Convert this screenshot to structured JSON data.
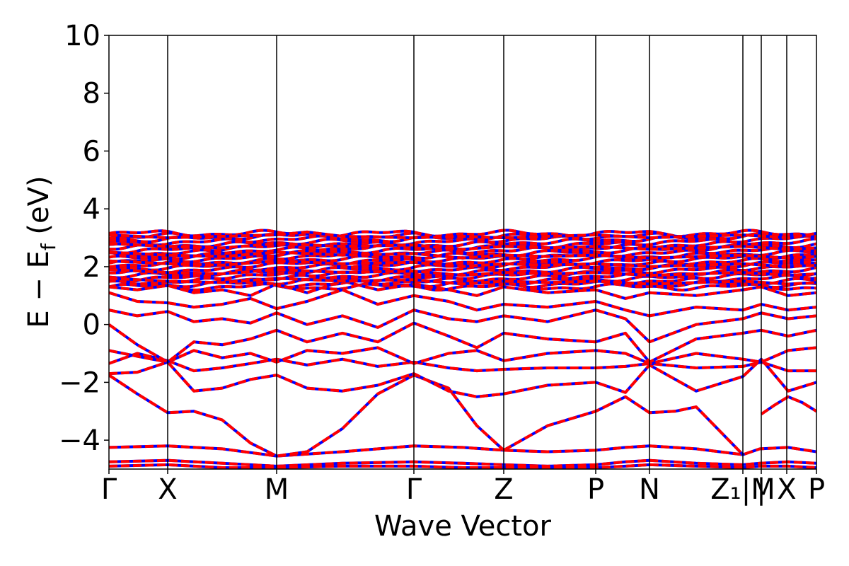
{
  "chart_data": {
    "type": "line",
    "title": "",
    "xlabel": "Wave Vector",
    "ylabel_parts": {
      "main": "E − E",
      "sub": "f",
      "unit": " (eV)"
    },
    "ylim": [
      -5,
      10
    ],
    "yticks": [
      {
        "value": -4,
        "label": "−4"
      },
      {
        "value": -2,
        "label": "−2"
      },
      {
        "value": 0,
        "label": "0"
      },
      {
        "value": 2,
        "label": "2"
      },
      {
        "value": 4,
        "label": "4"
      },
      {
        "value": 6,
        "label": "6"
      },
      {
        "value": 8,
        "label": "8"
      },
      {
        "value": 10,
        "label": "10"
      }
    ],
    "high_symmetry_points": [
      {
        "label": "Γ",
        "pos": 0.0
      },
      {
        "label": "X",
        "pos": 0.083
      },
      {
        "label": "M",
        "pos": 0.237
      },
      {
        "label": "Γ",
        "pos": 0.431
      },
      {
        "label": "Z",
        "pos": 0.558
      },
      {
        "label": "P",
        "pos": 0.688
      },
      {
        "label": "N",
        "pos": 0.764
      },
      {
        "label": "Z₁|M",
        "pos": 0.896
      },
      {
        "label": "|",
        "pos": 0.922
      },
      {
        "label": "X",
        "pos": 0.958
      },
      {
        "label": "P",
        "pos": 1.0
      }
    ],
    "series": [
      {
        "color": "#0000ff",
        "style": "solid"
      },
      {
        "color": "#ff0000",
        "style": "dashed"
      }
    ],
    "bands": [
      {
        "k": [
          0,
          0.083,
          0.16,
          0.237,
          0.33,
          0.431,
          0.5,
          0.558,
          0.62,
          0.688,
          0.73,
          0.764,
          0.83,
          0.896,
          0.92,
          0.96,
          1.0
        ],
        "e": [
          -4.25,
          -4.2,
          -4.3,
          -4.55,
          -4.4,
          -4.2,
          -4.25,
          -4.35,
          -4.4,
          -4.35,
          -4.25,
          -4.2,
          -4.3,
          -4.5,
          -4.3,
          -4.25,
          -4.4
        ]
      },
      {
        "k": [
          0,
          0.083,
          0.16,
          0.237,
          0.33,
          0.431,
          0.5,
          0.558,
          0.62,
          0.688,
          0.73,
          0.764,
          0.83,
          0.896,
          0.92,
          0.96,
          1.0
        ],
        "e": [
          -4.75,
          -4.7,
          -4.8,
          -4.9,
          -4.8,
          -4.75,
          -4.8,
          -4.85,
          -4.9,
          -4.85,
          -4.75,
          -4.7,
          -4.8,
          -4.85,
          -4.8,
          -4.75,
          -4.8
        ]
      },
      {
        "k": [
          0,
          0.083,
          0.16,
          0.237,
          0.33,
          0.431,
          0.5,
          0.558,
          0.62,
          0.688,
          0.73,
          0.764,
          0.83,
          0.896,
          0.92,
          0.96,
          1.0
        ],
        "e": [
          -4.9,
          -4.85,
          -4.95,
          -4.95,
          -4.9,
          -4.9,
          -4.95,
          -4.95,
          -4.95,
          -4.95,
          -4.9,
          -4.85,
          -4.9,
          -4.95,
          -4.9,
          -4.9,
          -4.95
        ]
      },
      {
        "k": [
          0,
          0.04,
          0.083,
          0.12,
          0.16,
          0.2,
          0.237,
          0.28,
          0.33,
          0.38,
          0.431,
          0.48,
          0.52,
          0.558
        ],
        "e": [
          -1.75,
          -2.4,
          -3.05,
          -3.0,
          -3.3,
          -4.1,
          -4.55,
          -4.4,
          -3.6,
          -2.4,
          -1.75,
          -2.2,
          -3.5,
          -4.35
        ]
      },
      {
        "k": [
          0.558,
          0.62,
          0.688,
          0.73,
          0.764,
          0.8,
          0.83,
          0.896
        ],
        "e": [
          -4.35,
          -3.5,
          -3.0,
          -2.5,
          -3.05,
          -3.0,
          -2.85,
          -4.5
        ]
      },
      {
        "k": [
          0.922,
          0.94,
          0.96,
          0.98,
          1.0
        ],
        "e": [
          -3.1,
          -2.8,
          -2.5,
          -2.7,
          -3.0
        ]
      },
      {
        "k": [
          0,
          0.04,
          0.083,
          0.12,
          0.16,
          0.2,
          0.237,
          0.28,
          0.33,
          0.38,
          0.431,
          0.48,
          0.52,
          0.558,
          0.62,
          0.688,
          0.73,
          0.764,
          0.83,
          0.896,
          0.922,
          0.96,
          1.0
        ],
        "e": [
          -1.7,
          -1.65,
          -1.3,
          -2.3,
          -2.2,
          -1.9,
          -1.75,
          -2.2,
          -2.3,
          -2.1,
          -1.7,
          -2.3,
          -2.5,
          -2.4,
          -2.1,
          -2.0,
          -2.35,
          -1.4,
          -2.3,
          -1.8,
          -1.2,
          -2.3,
          -2.0
        ]
      },
      {
        "k": [
          0,
          0.04,
          0.083,
          0.12,
          0.16,
          0.2,
          0.237,
          0.28,
          0.33,
          0.38,
          0.431,
          0.48,
          0.52,
          0.558,
          0.62,
          0.688,
          0.73,
          0.764,
          0.83,
          0.896,
          0.922,
          0.96,
          1.0
        ],
        "e": [
          -1.35,
          -1.0,
          -1.25,
          -1.6,
          -1.5,
          -1.35,
          -1.2,
          -1.4,
          -1.2,
          -1.45,
          -1.3,
          -1.5,
          -1.6,
          -1.55,
          -1.5,
          -1.5,
          -1.45,
          -1.35,
          -1.5,
          -1.45,
          -1.3,
          -1.6,
          -1.6
        ]
      },
      {
        "k": [
          0,
          0.04,
          0.083,
          0.12,
          0.16,
          0.2,
          0.237,
          0.28,
          0.33,
          0.38,
          0.431,
          0.48,
          0.52,
          0.558,
          0.62,
          0.688,
          0.73,
          0.764,
          0.83,
          0.896,
          0.922,
          0.96,
          1.0
        ],
        "e": [
          -0.9,
          -1.1,
          -1.3,
          -0.9,
          -1.15,
          -1.0,
          -1.3,
          -0.9,
          -1.0,
          -0.8,
          -1.35,
          -1.0,
          -0.9,
          -1.25,
          -1.0,
          -0.9,
          -1.0,
          -1.35,
          -1.0,
          -1.2,
          -1.3,
          -0.9,
          -0.8
        ]
      },
      {
        "k": [
          0,
          0.04,
          0.083,
          0.12,
          0.16,
          0.2,
          0.237,
          0.28,
          0.33,
          0.38,
          0.431,
          0.48,
          0.52,
          0.558,
          0.62,
          0.688,
          0.73,
          0.764,
          0.83,
          0.896,
          0.922,
          0.96,
          1.0
        ],
        "e": [
          0.0,
          -0.7,
          -1.3,
          -0.6,
          -0.7,
          -0.5,
          -0.2,
          -0.6,
          -0.3,
          -0.6,
          0.05,
          -0.4,
          -0.8,
          -0.3,
          -0.5,
          -0.6,
          -0.3,
          -1.3,
          -0.5,
          -0.3,
          -0.2,
          -0.4,
          -0.2
        ]
      },
      {
        "k": [
          0,
          0.04,
          0.083,
          0.12,
          0.16,
          0.2,
          0.237,
          0.28,
          0.33,
          0.38,
          0.431,
          0.48,
          0.52,
          0.558,
          0.62,
          0.688,
          0.73,
          0.764,
          0.83,
          0.896,
          0.922,
          0.96,
          1.0
        ],
        "e": [
          0.5,
          0.3,
          0.45,
          0.1,
          0.2,
          0.05,
          0.4,
          0.0,
          0.3,
          -0.1,
          0.5,
          0.2,
          0.1,
          0.3,
          0.1,
          0.5,
          0.2,
          -0.6,
          0.0,
          0.2,
          0.4,
          0.2,
          0.3
        ]
      },
      {
        "k": [
          0,
          0.04,
          0.083,
          0.12,
          0.16,
          0.2,
          0.237,
          0.28,
          0.33,
          0.38,
          0.431,
          0.48,
          0.52,
          0.558,
          0.62,
          0.688,
          0.73,
          0.764,
          0.83,
          0.896,
          0.922,
          0.96,
          1.0
        ],
        "e": [
          1.1,
          0.8,
          0.75,
          0.6,
          0.7,
          0.9,
          0.55,
          0.8,
          1.2,
          0.7,
          1.0,
          0.8,
          0.5,
          0.7,
          0.6,
          0.8,
          0.5,
          0.3,
          0.6,
          0.5,
          0.7,
          0.5,
          0.6
        ]
      },
      {
        "k": [
          0,
          0.04,
          0.083,
          0.12,
          0.16,
          0.2,
          0.237,
          0.28,
          0.33,
          0.38,
          0.431,
          0.48,
          0.52,
          0.558,
          0.62,
          0.688,
          0.73,
          0.764,
          0.83,
          0.896,
          0.922,
          0.96,
          1.0
        ],
        "e": [
          1.3,
          1.2,
          1.35,
          1.1,
          1.2,
          1.0,
          1.4,
          1.1,
          1.5,
          1.2,
          1.4,
          1.2,
          1.0,
          1.3,
          1.1,
          1.2,
          0.9,
          1.1,
          1.0,
          1.2,
          1.3,
          1.0,
          1.1
        ]
      },
      {
        "k": [
          0,
          0.083,
          0.16,
          0.237,
          0.33,
          0.431,
          0.5,
          0.558,
          0.62,
          0.688,
          0.764,
          0.83,
          0.896,
          0.96,
          1.0
        ],
        "e": [
          1.6,
          1.5,
          1.45,
          1.6,
          1.5,
          1.55,
          1.4,
          1.5,
          1.45,
          1.5,
          1.4,
          1.45,
          1.5,
          1.4,
          1.45
        ]
      },
      {
        "k": [
          0,
          0.083,
          0.16,
          0.237,
          0.33,
          0.431,
          0.5,
          0.558,
          0.62,
          0.688,
          0.764,
          0.83,
          0.896,
          0.96,
          1.0
        ],
        "e": [
          1.9,
          1.8,
          1.75,
          1.9,
          1.8,
          1.85,
          1.7,
          1.8,
          1.75,
          1.8,
          1.7,
          1.75,
          1.8,
          1.7,
          1.75
        ]
      },
      {
        "k": [
          0,
          0.083,
          0.16,
          0.237,
          0.33,
          0.431,
          0.5,
          0.558,
          0.62,
          0.688,
          0.764,
          0.83,
          0.896,
          0.96,
          1.0
        ],
        "e": [
          2.2,
          2.1,
          2.05,
          2.2,
          2.1,
          2.15,
          2.0,
          2.1,
          2.05,
          2.1,
          2.0,
          2.05,
          2.1,
          2.0,
          2.05
        ]
      },
      {
        "k": [
          0,
          0.083,
          0.16,
          0.237,
          0.33,
          0.431,
          0.5,
          0.558,
          0.62,
          0.688,
          0.764,
          0.83,
          0.896,
          0.96,
          1.0
        ],
        "e": [
          2.5,
          2.4,
          2.35,
          2.5,
          2.4,
          2.45,
          2.3,
          2.4,
          2.35,
          2.4,
          2.3,
          2.35,
          2.4,
          2.3,
          2.35
        ]
      },
      {
        "k": [
          0,
          0.083,
          0.16,
          0.237,
          0.33,
          0.431,
          0.5,
          0.558,
          0.62,
          0.688,
          0.764,
          0.83,
          0.896,
          0.96,
          1.0
        ],
        "e": [
          2.8,
          2.7,
          2.65,
          2.8,
          2.7,
          2.75,
          2.6,
          2.7,
          2.65,
          2.7,
          2.6,
          2.65,
          2.7,
          2.6,
          2.65
        ]
      },
      {
        "k": [
          0,
          0.083,
          0.16,
          0.237,
          0.28,
          0.33,
          0.431,
          0.5,
          0.558,
          0.62,
          0.688,
          0.764,
          0.83,
          0.896,
          0.96,
          1.0
        ],
        "e": [
          3.1,
          3.0,
          3.05,
          3.1,
          3.2,
          3.05,
          3.0,
          3.05,
          3.0,
          3.05,
          3.1,
          3.0,
          3.05,
          3.1,
          3.0,
          3.15
        ]
      }
    ],
    "dense_band_region": {
      "emin": 1.3,
      "emax": 3.15
    }
  }
}
